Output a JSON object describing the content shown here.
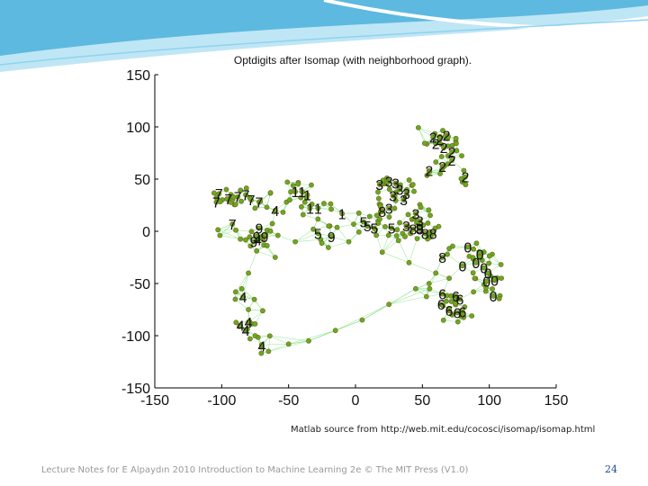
{
  "slide": {
    "source_note": "Matlab source from http://web.mit.edu/cocosci/isomap/isomap.html",
    "footer": "Lecture Notes for E Alpaydın 2010 Introduction to Machine Learning 2e © The MIT Press (V1.0)",
    "page_number": "24",
    "colors": {
      "header_light": "#bfe6f5",
      "header_mid": "#7fcbe8",
      "header_dark": "#3fa9d6"
    }
  },
  "chart_data": {
    "type": "scatter",
    "title": "Optdigits after Isomap (with neighborhood graph).",
    "xlabel": "",
    "ylabel": "",
    "xlim": [
      -150,
      150
    ],
    "ylim": [
      -150,
      150
    ],
    "x_ticks": [
      "-150",
      "-100",
      "-50",
      "0",
      "50",
      "100",
      "150"
    ],
    "y_ticks": [
      "150",
      "100",
      "50",
      "0",
      "-50",
      "-100",
      "-150"
    ],
    "grid": false,
    "legend": "none",
    "colors": {
      "point": "#5fae24",
      "point_edge": "#8a5a1a",
      "edge": "#7fe07f"
    },
    "labeled_points": [
      {
        "label": "2",
        "x": 58,
        "y": 90
      },
      {
        "label": "2",
        "x": 63,
        "y": 88
      },
      {
        "label": "2",
        "x": 68,
        "y": 92
      },
      {
        "label": "2",
        "x": 60,
        "y": 84
      },
      {
        "label": "2",
        "x": 66,
        "y": 80
      },
      {
        "label": "2",
        "x": 72,
        "y": 76
      },
      {
        "label": "2",
        "x": 55,
        "y": 58
      },
      {
        "label": "2",
        "x": 65,
        "y": 62
      },
      {
        "label": "2",
        "x": 72,
        "y": 68
      },
      {
        "label": "2",
        "x": 82,
        "y": 52
      },
      {
        "label": "7",
        "x": -102,
        "y": 36
      },
      {
        "label": "7",
        "x": -104,
        "y": 28
      },
      {
        "label": "7",
        "x": -95,
        "y": 31
      },
      {
        "label": "7",
        "x": -88,
        "y": 33
      },
      {
        "label": "7",
        "x": -82,
        "y": 35
      },
      {
        "label": "7",
        "x": -78,
        "y": 30
      },
      {
        "label": "7",
        "x": -72,
        "y": 28
      },
      {
        "label": "7",
        "x": -92,
        "y": 7
      },
      {
        "label": "1",
        "x": -45,
        "y": 38
      },
      {
        "label": "1",
        "x": -40,
        "y": 38
      },
      {
        "label": "1",
        "x": -36,
        "y": 35
      },
      {
        "label": "1",
        "x": -34,
        "y": 22
      },
      {
        "label": "1",
        "x": -28,
        "y": 22
      },
      {
        "label": "1",
        "x": -10,
        "y": 17
      },
      {
        "label": "4",
        "x": -60,
        "y": 20
      },
      {
        "label": "4",
        "x": -84,
        "y": -63
      },
      {
        "label": "4",
        "x": -86,
        "y": -90
      },
      {
        "label": "4",
        "x": -80,
        "y": -87
      },
      {
        "label": "4",
        "x": -82,
        "y": -95
      },
      {
        "label": "4",
        "x": -70,
        "y": -110
      },
      {
        "label": "3",
        "x": 18,
        "y": 45
      },
      {
        "label": "3",
        "x": 25,
        "y": 48
      },
      {
        "label": "3",
        "x": 30,
        "y": 46
      },
      {
        "label": "3",
        "x": 33,
        "y": 40
      },
      {
        "label": "3",
        "x": 38,
        "y": 36
      },
      {
        "label": "3",
        "x": 28,
        "y": 34
      },
      {
        "label": "3",
        "x": 36,
        "y": 30
      },
      {
        "label": "3",
        "x": 45,
        "y": 17
      },
      {
        "label": "3",
        "x": 48,
        "y": 10
      },
      {
        "label": "3",
        "x": 25,
        "y": 22
      },
      {
        "label": "3",
        "x": 38,
        "y": 5
      },
      {
        "label": "8",
        "x": 43,
        "y": 2
      },
      {
        "label": "8",
        "x": 48,
        "y": 2
      },
      {
        "label": "8",
        "x": 52,
        "y": -2
      },
      {
        "label": "8",
        "x": 58,
        "y": -2
      },
      {
        "label": "8",
        "x": 65,
        "y": -25
      },
      {
        "label": "8",
        "x": 20,
        "y": 19
      },
      {
        "label": "5",
        "x": 6,
        "y": 9
      },
      {
        "label": "5",
        "x": 9,
        "y": 5
      },
      {
        "label": "5",
        "x": 14,
        "y": 3
      },
      {
        "label": "5",
        "x": 27,
        "y": 3
      },
      {
        "label": "5",
        "x": -28,
        "y": -2
      },
      {
        "label": "9",
        "x": 48,
        "y": 3
      },
      {
        "label": "9",
        "x": -18,
        "y": -5
      },
      {
        "label": "9",
        "x": -72,
        "y": 3
      },
      {
        "label": "9",
        "x": -74,
        "y": -5
      },
      {
        "label": "9",
        "x": -68,
        "y": -5
      },
      {
        "label": "9",
        "x": -76,
        "y": -10
      },
      {
        "label": "4",
        "x": -73,
        "y": -8
      },
      {
        "label": "0",
        "x": 84,
        "y": -15
      },
      {
        "label": "0",
        "x": 93,
        "y": -22
      },
      {
        "label": "0",
        "x": 80,
        "y": -33
      },
      {
        "label": "0",
        "x": 96,
        "y": -35
      },
      {
        "label": "0",
        "x": 99,
        "y": -40
      },
      {
        "label": "0",
        "x": 104,
        "y": -47
      },
      {
        "label": "0",
        "x": 98,
        "y": -48
      },
      {
        "label": "0",
        "x": 103,
        "y": -62
      },
      {
        "label": "0",
        "x": 90,
        "y": -30
      },
      {
        "label": "6",
        "x": 65,
        "y": -60
      },
      {
        "label": "6",
        "x": 75,
        "y": -62
      },
      {
        "label": "6",
        "x": 78,
        "y": -65
      },
      {
        "label": "6",
        "x": 64,
        "y": -70
      },
      {
        "label": "6",
        "x": 70,
        "y": -76
      },
      {
        "label": "6",
        "x": 76,
        "y": -78
      },
      {
        "label": "6",
        "x": 80,
        "y": -77
      }
    ]
  }
}
